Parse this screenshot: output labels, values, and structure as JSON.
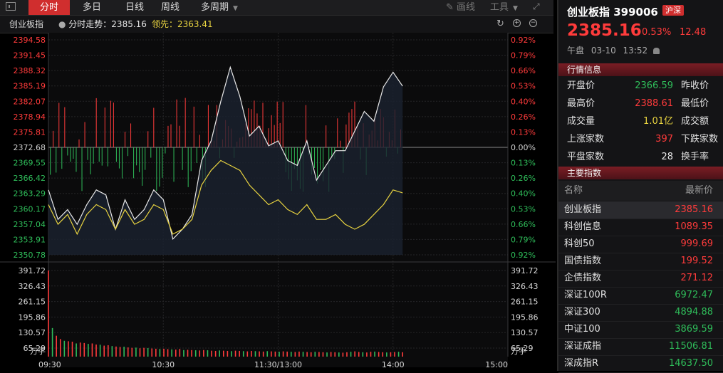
{
  "toolbar": {
    "tabs": [
      "分时",
      "多日",
      "日线",
      "周线",
      "多周期"
    ],
    "draw_label": "画线",
    "tools_label": "工具"
  },
  "subbar": {
    "index_name": "创业板指",
    "trend_label": "分时走势：2385.16",
    "lead_label": "领先：2363.41"
  },
  "chart": {
    "price_ticks": [
      "2394.58",
      "2391.45",
      "2388.32",
      "2385.19",
      "2382.07",
      "2378.94",
      "2375.81",
      "2372.68",
      "2369.55",
      "2366.42",
      "2363.29",
      "2360.17",
      "2357.04",
      "2353.91",
      "2350.78"
    ],
    "pct_ticks": [
      "0.92%",
      "0.79%",
      "0.66%",
      "0.53%",
      "0.40%",
      "0.26%",
      "0.13%",
      "0.00%",
      "0.13%",
      "0.26%",
      "0.40%",
      "0.53%",
      "0.66%",
      "0.79%",
      "0.92%"
    ],
    "vol_ticks": [
      "391.72",
      "326.43",
      "261.15",
      "195.86",
      "130.57",
      "65.29"
    ],
    "vol_unit": "万手",
    "time_labels": [
      "09:30",
      "10:30",
      "11:30/13:00",
      "14:00",
      "15:00"
    ],
    "colors": {
      "up": "#ff3b3b",
      "down": "#2fbd5a",
      "price_line": "#e8e8e8",
      "lead_line": "#e8d340",
      "base": "#cfcfcf",
      "grid": "#252527"
    },
    "chart_data": {
      "type": "line",
      "x_unit": "minutes since 09:30 (trading time)",
      "y_range": [
        2350.78,
        2394.58
      ],
      "base": 2372.68,
      "volume_range": [
        0,
        391.72
      ],
      "series": [
        {
          "x": [
            0,
            5,
            10,
            15,
            20,
            25,
            30,
            35,
            40,
            45,
            50,
            55,
            60,
            65,
            70,
            75,
            80,
            85,
            90,
            95,
            100,
            105,
            110,
            115,
            120,
            125,
            130,
            135,
            140,
            145,
            150,
            155,
            160,
            165,
            170,
            175,
            180,
            185
          ],
          "y": [
            2364,
            2358,
            2360,
            2357,
            2361,
            2364,
            2363,
            2356,
            2362,
            2358,
            2360,
            2364,
            2362,
            2354,
            2356,
            2359,
            2370,
            2374,
            2382,
            2389,
            2383,
            2375,
            2377,
            2373,
            2374,
            2370,
            2369,
            2374,
            2366,
            2369,
            2372,
            2372,
            2376,
            2380,
            2378,
            2385,
            2388,
            2385.16
          ]
        },
        {
          "x": [
            0,
            5,
            10,
            15,
            20,
            25,
            30,
            35,
            40,
            45,
            50,
            55,
            60,
            65,
            70,
            75,
            80,
            85,
            90,
            95,
            100,
            105,
            110,
            115,
            120,
            125,
            130,
            135,
            140,
            145,
            150,
            155,
            160,
            165,
            170,
            175,
            180,
            185
          ],
          "y": [
            2361,
            2357,
            2359,
            2355,
            2359,
            2361,
            2360,
            2356,
            2360,
            2357,
            2358,
            2361,
            2360,
            2355,
            2356,
            2358,
            2365,
            2368,
            2370,
            2369,
            2368,
            2365,
            2363,
            2361,
            2362,
            2360,
            2359,
            2361,
            2358,
            2358,
            2359,
            2357,
            2356,
            2357,
            2359,
            2361,
            2364,
            2363.41
          ]
        }
      ],
      "volume": [
        391.72,
        130,
        95,
        80,
        72,
        70,
        68,
        60,
        64,
        62,
        58,
        60,
        55,
        54,
        50,
        52,
        48,
        46,
        44,
        45,
        42,
        40,
        41,
        38,
        40,
        39,
        37,
        36,
        35,
        36,
        34,
        33,
        32,
        35,
        30,
        31,
        30,
        29,
        28,
        30,
        29,
        27,
        26,
        28,
        27,
        26,
        25,
        27,
        26,
        25,
        24,
        26,
        25,
        24,
        23,
        25,
        24,
        23,
        22,
        24,
        23,
        22,
        21,
        23,
        22,
        21,
        20,
        22,
        21,
        20,
        19,
        21,
        20,
        19,
        18,
        20,
        22,
        24,
        21,
        20,
        19,
        22,
        23,
        21,
        20,
        19,
        20,
        21,
        22,
        20
      ]
    }
  },
  "panel": {
    "title": "创业板指 399006",
    "badge": "沪深",
    "price": "2385.16",
    "pct": "0.53%",
    "chg": "12.48",
    "session": "午盘",
    "date": "03-10",
    "time": "13:52",
    "quote_head": "行情信息",
    "quotes": [
      {
        "l1": "开盘价",
        "v1": "2366.59",
        "l2": "昨收价"
      },
      {
        "l1": "最高价",
        "v1": "2388.61",
        "l2": "最低价"
      },
      {
        "l1": "成交量",
        "v1": "1.01亿",
        "l2": "成交额"
      },
      {
        "l1": "上涨家数",
        "v1": "397",
        "l2": "下跌家数"
      },
      {
        "l1": "平盘家数",
        "v1": "28",
        "l2": "换手率"
      }
    ],
    "index_head": "主要指数",
    "col_name": "名称",
    "col_price": "最新价",
    "indices": [
      {
        "name": "创业板指",
        "price": "2385.16"
      },
      {
        "name": "科创信息",
        "price": "1089.35"
      },
      {
        "name": "科创50",
        "price": "999.69"
      },
      {
        "name": "国债指数",
        "price": "199.52"
      },
      {
        "name": "企债指数",
        "price": "271.12"
      },
      {
        "name": "深证100R",
        "price": "6972.47"
      },
      {
        "name": "深证300",
        "price": "4894.88"
      },
      {
        "name": "中证100",
        "price": "3869.59"
      },
      {
        "name": "深证成指",
        "price": "11506.81"
      },
      {
        "name": "深成指R",
        "price": "14637.50"
      }
    ]
  }
}
